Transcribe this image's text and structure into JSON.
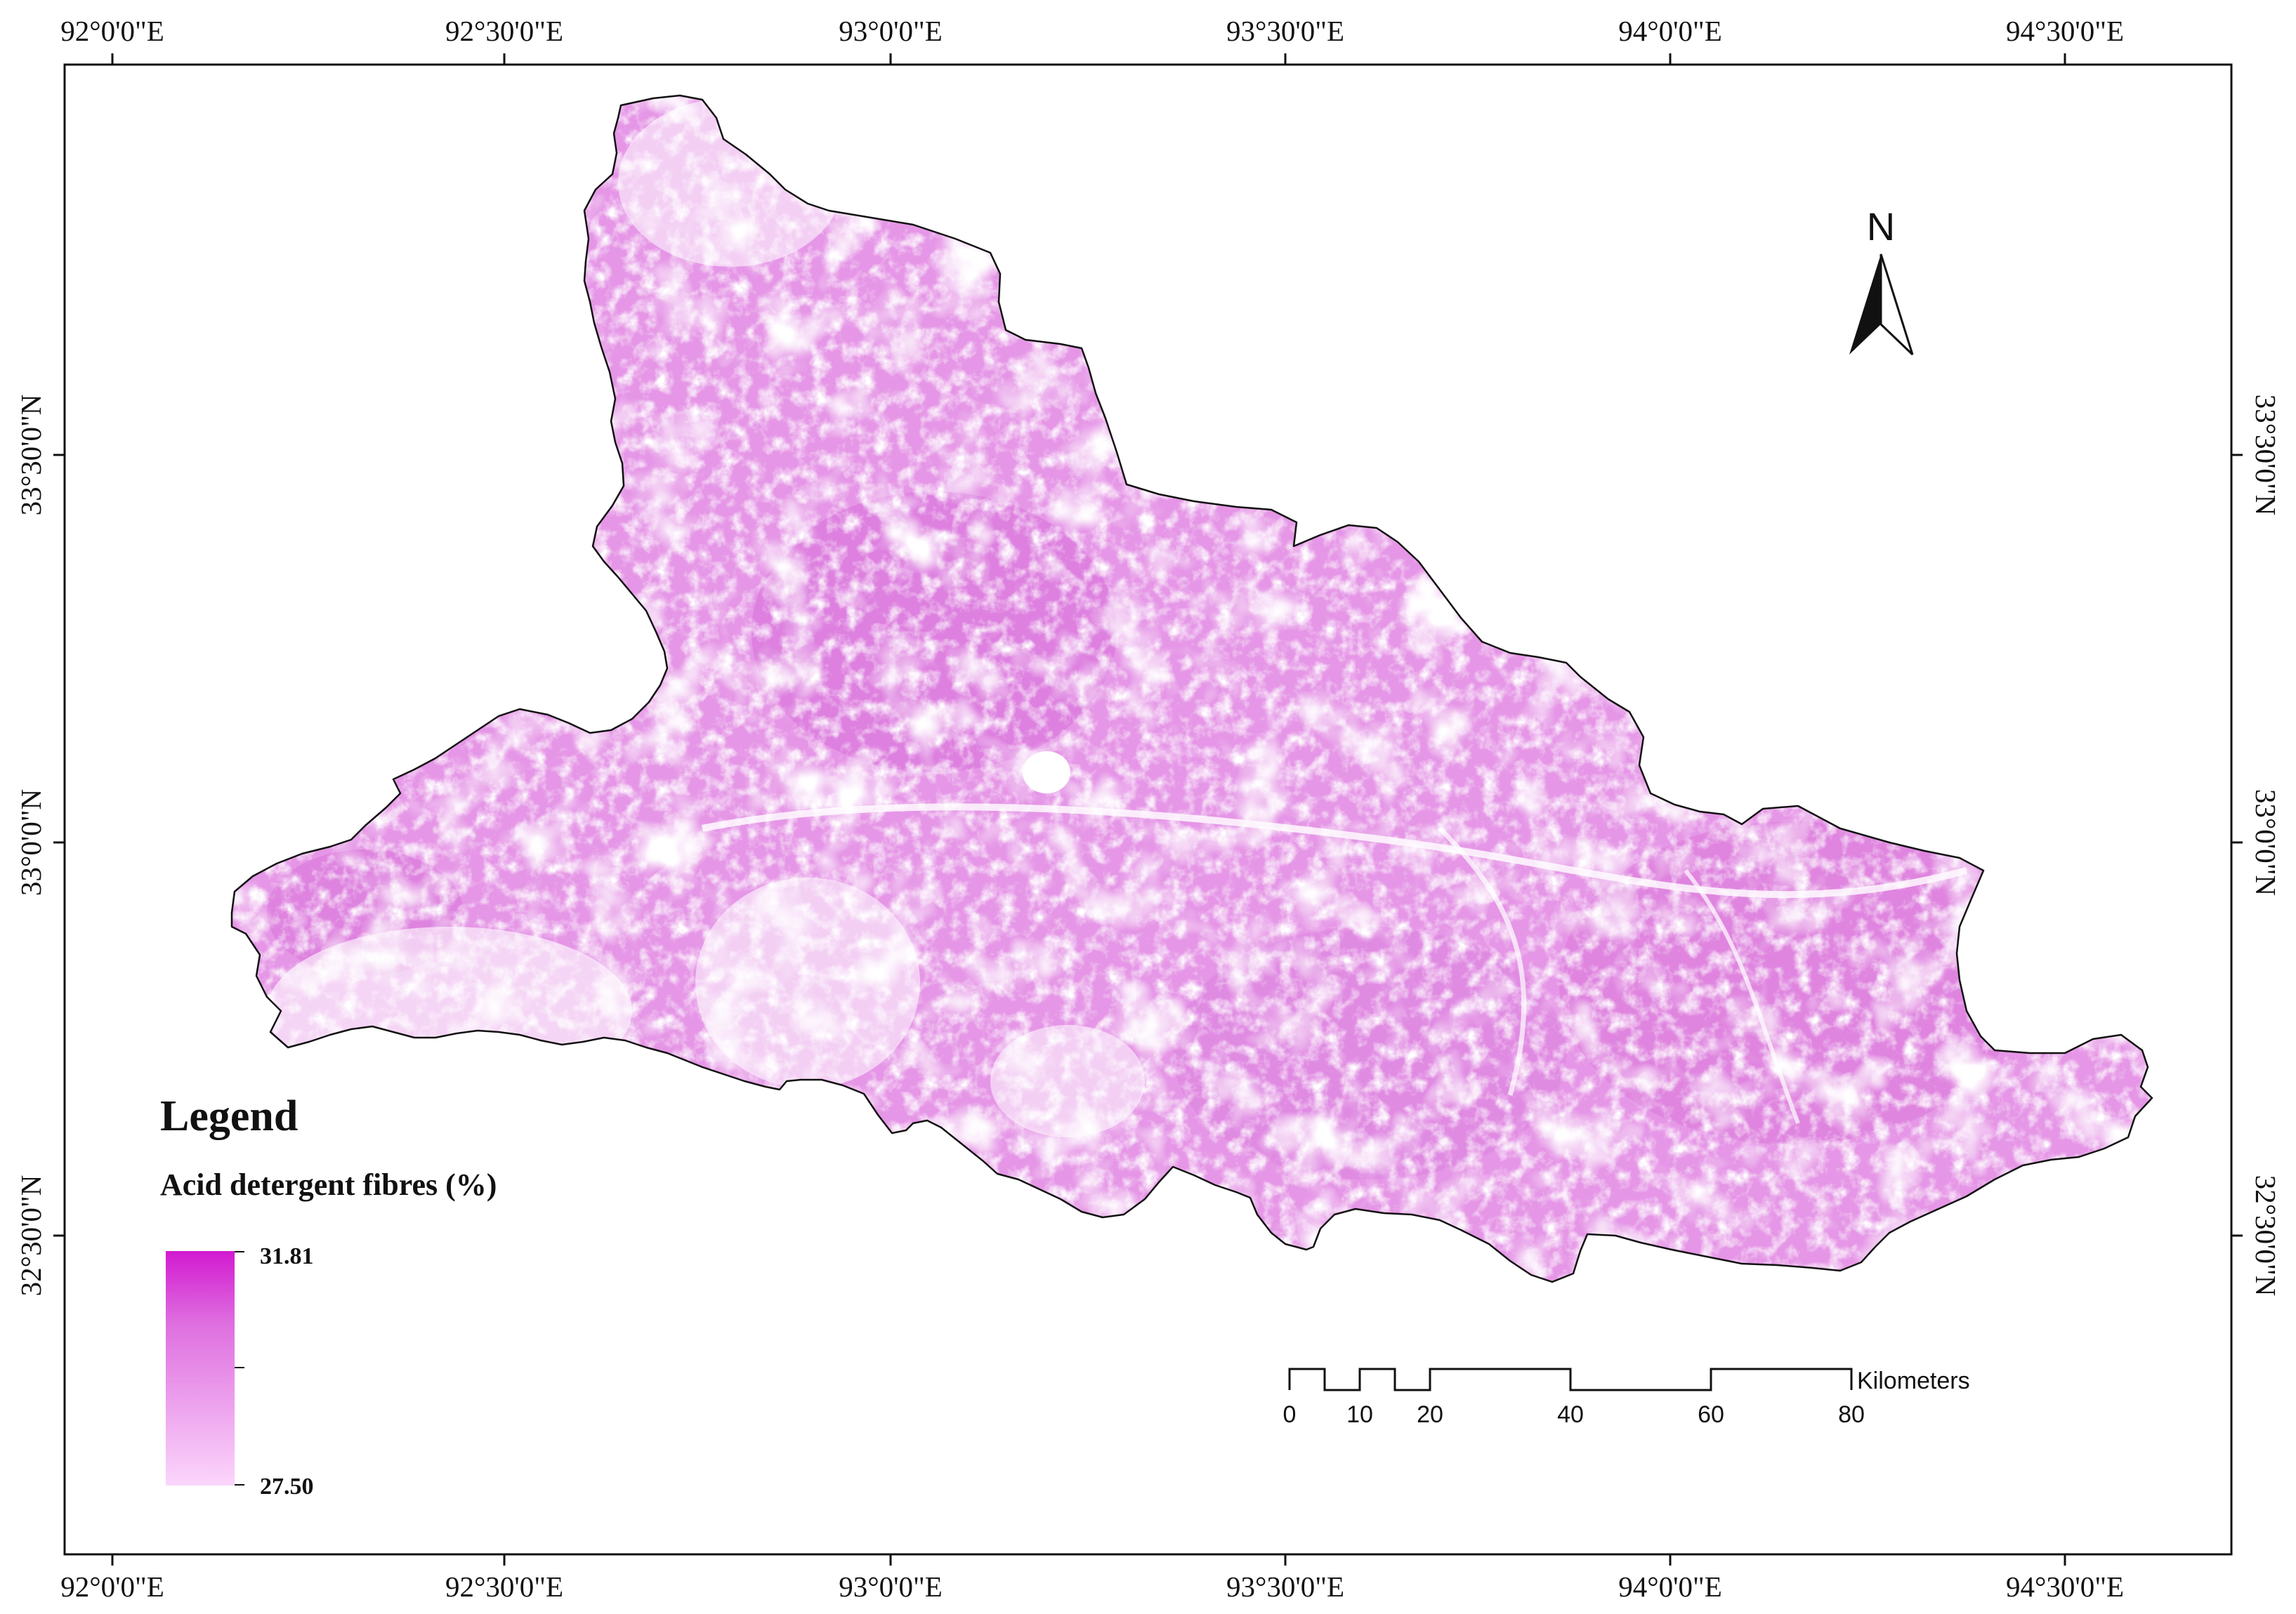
{
  "frame": {
    "top_lon_labels": [
      "92°0'0\"E",
      "92°30'0\"E",
      "93°0'0\"E",
      "93°30'0\"E",
      "94°0'0\"E",
      "94°30'0\"E"
    ],
    "bottom_lon_labels": [
      "92°0'0\"E",
      "92°30'0\"E",
      "93°0'0\"E",
      "93°30'0\"E",
      "94°0'0\"E",
      "94°30'0\"E"
    ],
    "left_lat_labels": [
      "33°30'0\"N",
      "33°0'0\"N",
      "32°30'0\"N"
    ],
    "right_lat_labels": [
      "33°30'0\"N",
      "33°0'0\"N",
      "32°30'0\"N"
    ]
  },
  "legend": {
    "title": "Legend",
    "subtitle": "Acid detergent fibres (%)",
    "max_label": "31.81",
    "min_label": "27.50",
    "max_color": "#d21ad0",
    "min_color": "#fbd6fb"
  },
  "north_arrow": {
    "label": "N"
  },
  "scale_bar": {
    "unit": "Kilometers",
    "tick_labels": [
      "0",
      "10",
      "20",
      "40",
      "60",
      "80"
    ]
  },
  "colors": {
    "region_fill": "#e596e6",
    "region_dark": "#d768d8",
    "region_light": "#f3c9f3",
    "outline": "#111111",
    "frame": "#111111"
  }
}
